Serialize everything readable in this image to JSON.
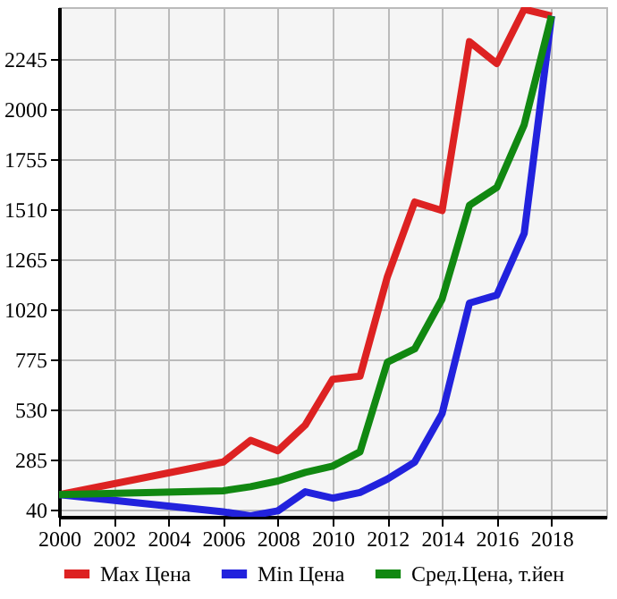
{
  "chart_data": {
    "type": "line",
    "x": [
      2000,
      2006,
      2007,
      2008,
      2009,
      2010,
      2011,
      2012,
      2013,
      2014,
      2015,
      2016,
      2017,
      2018
    ],
    "series": [
      {
        "name": "Max Цена",
        "color": "#dd2222",
        "values": [
          113,
          273,
          379,
          328,
          454,
          678,
          693,
          1180,
          1546,
          1504,
          2331,
          2224,
          2490,
          2457
        ]
      },
      {
        "name": "Min Цена",
        "color": "#2222dd",
        "values": [
          113,
          29,
          10,
          34,
          127,
          96,
          124,
          189,
          273,
          510,
          1051,
          1090,
          1392,
          2457
        ]
      },
      {
        "name": "Сред.Цена, т.йен",
        "color": "#118811",
        "values": [
          113,
          132,
          152,
          180,
          222,
          253,
          323,
          762,
          827,
          1071,
          1530,
          1617,
          1924,
          2457
        ]
      }
    ],
    "xlim": [
      2000,
      2020
    ],
    "xticks": [
      2000,
      2002,
      2004,
      2006,
      2008,
      2010,
      2012,
      2014,
      2016,
      2018
    ],
    "ylim": [
      5,
      2500
    ],
    "yticks": [
      40,
      285,
      530,
      775,
      1020,
      1265,
      1510,
      1755,
      2000,
      2245
    ],
    "grid": true,
    "legend": "bottom",
    "marker": "none",
    "line_style": "solid"
  }
}
